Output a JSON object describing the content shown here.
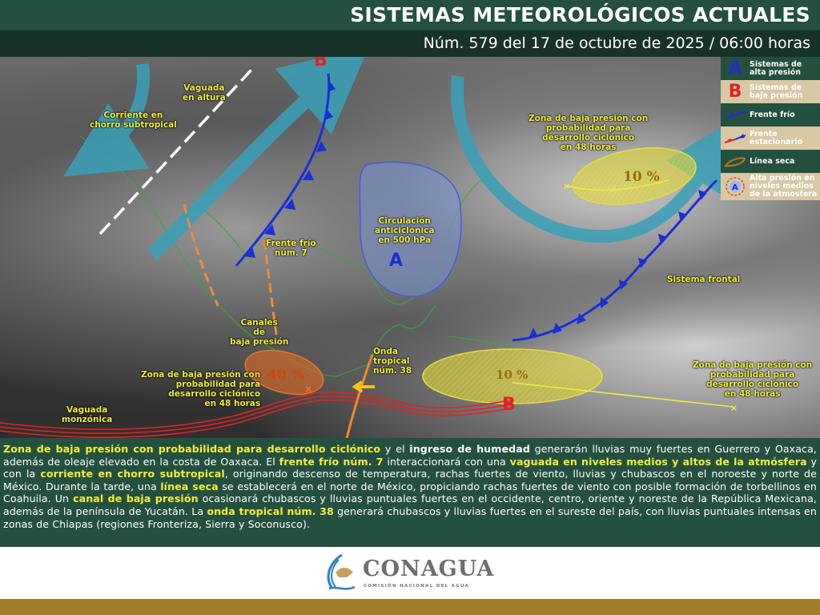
{
  "header": {
    "title": "SISTEMAS METEOROLÓGICOS ACTUALES",
    "subtitle": "Núm. 579 del 17 de octubre de 2025 / 06:00 horas"
  },
  "legend": [
    {
      "icon": "high-pressure-A",
      "label": [
        "Sistemas de",
        "alta presión"
      ]
    },
    {
      "icon": "low-pressure-B",
      "label": [
        "Sistemas de",
        "baja presión"
      ]
    },
    {
      "icon": "cold-front",
      "label": [
        "Frente frío"
      ]
    },
    {
      "icon": "stationary-front",
      "label": [
        "Frente",
        "estacionario"
      ]
    },
    {
      "icon": "dry-line",
      "label": [
        "Línea seca"
      ]
    },
    {
      "icon": "upper-high-pressure",
      "label": [
        "Alta presión en",
        "niveles medios",
        "de la atmosfera"
      ]
    }
  ],
  "colors": {
    "high": "#1a2fd6",
    "low": "#e02424",
    "label": "#f2ee3a",
    "green": "#24503f",
    "beige": "#d9c8a4",
    "jet": "#3aa0b8",
    "gold": "#a27b2d"
  },
  "map": {
    "symbols": {
      "B": "B",
      "A": "A"
    },
    "labels": {
      "jet": [
        "Corriente en",
        "chorro subtropical"
      ],
      "trough_upper": [
        "Vaguada",
        "en altura"
      ],
      "cold_front": [
        "Frente frío",
        "núm. 7"
      ],
      "anticyclone": [
        "Circulación",
        "anticiclónica",
        "en 500 hPa"
      ],
      "low_atlantic": [
        "Zona de baja presión con",
        "probabilidad para",
        "desarrollo ciclónico",
        "en 48 horas"
      ],
      "frontal": [
        "Sistema  frontal"
      ],
      "channels": [
        "Canales",
        "de",
        "baja presión"
      ],
      "low_pacific": [
        "Zona de baja presión con",
        "probabilidad para",
        "desarrollo ciclónico",
        "en 48 horas"
      ],
      "tropical_wave": [
        "Onda",
        "tropical",
        "núm. 38"
      ],
      "low_caribbean": [
        "Zona de baja presión con",
        "probabilidad para",
        "desarrollo ciclónico",
        "en 48 horas"
      ],
      "monsoon": [
        "Vaguada",
        "monzónica"
      ]
    },
    "probabilities": {
      "atlantic": "10 %",
      "pacific": "40 %",
      "caribbean": "10 %"
    }
  },
  "paragraph": [
    {
      "t": "Zona de baja presión con probabilidad para desarrollo ciclónico",
      "s": "hl"
    },
    {
      "t": " y el ",
      "s": ""
    },
    {
      "t": "ingreso de humedad",
      "s": "b"
    },
    {
      "t": " generarán lluvias muy fuertes en Guerrero y Oaxaca, además de oleaje elevado en la costa de Oaxaca. El ",
      "s": ""
    },
    {
      "t": "frente frío núm. 7",
      "s": "hl"
    },
    {
      "t": " interaccionará con una ",
      "s": ""
    },
    {
      "t": "vaguada en niveles medios y altos de la atmósfera",
      "s": "hl"
    },
    {
      "t": " y con la ",
      "s": ""
    },
    {
      "t": "corriente en chorro subtropical",
      "s": "hl"
    },
    {
      "t": ", originando descenso de temperatura, rachas fuertes de viento, lluvias y chubascos en el noroeste y norte de México. Durante la tarde, una ",
      "s": ""
    },
    {
      "t": "línea seca",
      "s": "hl"
    },
    {
      "t": " se establecerá en el norte de México, propiciando rachas fuertes de viento con posible formación de torbellinos en Coahuila. Un ",
      "s": ""
    },
    {
      "t": "canal de baja presión",
      "s": "hl"
    },
    {
      "t": " ocasionará chubascos y lluvias puntuales fuertes en el occidente, centro, oriente y noreste de la República Mexicana, además de la península de Yucatán. La ",
      "s": ""
    },
    {
      "t": "onda tropical núm. 38",
      "s": "hl"
    },
    {
      "t": "  generará chubascos y lluvias fuertes en el sureste del país, con lluvias puntuales intensas en zonas de Chiapas (regiones Fronteriza, Sierra y Soconusco).",
      "s": ""
    }
  ],
  "footer": {
    "logo_name": "CONAGUA",
    "logo_sub": "COMISIÓN NACIONAL DEL AGUA"
  }
}
